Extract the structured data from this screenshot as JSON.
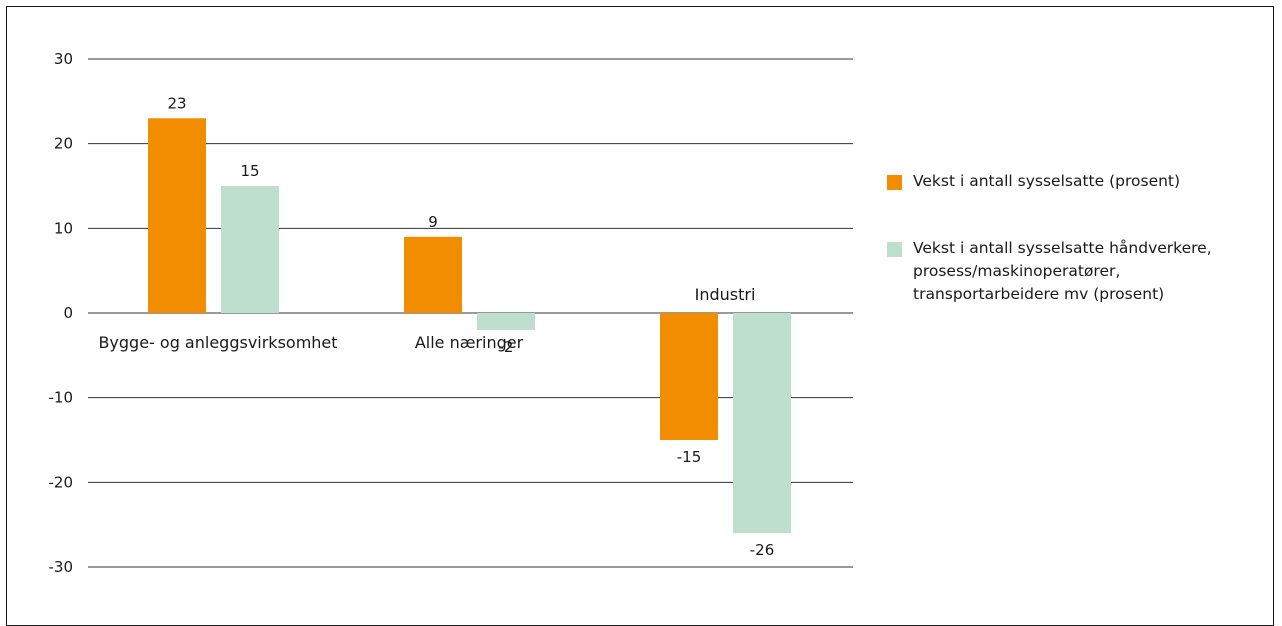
{
  "chart_data": {
    "type": "bar",
    "title": "",
    "xlabel": "",
    "ylabel": "",
    "ylim": [
      -30,
      30
    ],
    "yticks": [
      "30",
      "20",
      "10",
      "0",
      "-10",
      "-20",
      "-30"
    ],
    "grid": true,
    "legend_position": "right",
    "categories": [
      "Bygge- og anleggsvirksomhet",
      "Alle næringer",
      "Industri"
    ],
    "series": [
      {
        "name": "Vekst i antall sysselsatte (prosent)",
        "color": "#f28c00",
        "values": [
          23,
          9,
          -15
        ]
      },
      {
        "name": "Vekst i antall sysselsatte håndverkere, prosess/maskinoperatører, transportarbeidere mv (prosent)",
        "color": "#bedfcd",
        "values": [
          15,
          -2,
          -26
        ]
      }
    ],
    "data_labels": [
      [
        "23",
        "9",
        "-15"
      ],
      [
        "15",
        "-2",
        "-26"
      ]
    ]
  },
  "legend": {
    "items": [
      {
        "lines": [
          "Vekst i antall sysselsatte (prosent)"
        ],
        "color": "#f28c00"
      },
      {
        "lines": [
          "Vekst i antall sysselsatte håndverkere,",
          "prosess/maskinoperatører,",
          "transportarbeidere mv (prosent)"
        ],
        "color": "#bedfcd"
      }
    ]
  }
}
